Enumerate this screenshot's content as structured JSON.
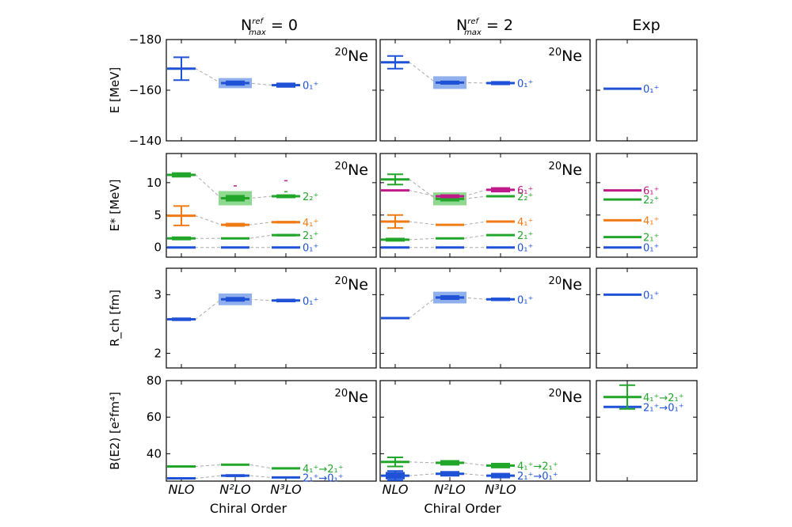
{
  "colors": {
    "blue": "#1f52d6",
    "green": "#22a62a",
    "orange": "#f07b14",
    "magenta": "#c0198a",
    "band_blue": "#8fb0ec",
    "band_green": "#8fd88f"
  },
  "columns": [
    {
      "id": "c0",
      "title_main": "N",
      "title_sup": "ref",
      "title_sub": "max",
      "title_value": " = 0"
    },
    {
      "id": "c1",
      "title_main": "N",
      "title_sup": "ref",
      "title_sub": "max",
      "title_value": " = 2"
    },
    {
      "id": "c2",
      "title": "Exp"
    }
  ],
  "nucleus": {
    "mass": "20",
    "symbol": "Ne"
  },
  "x_categories": [
    "NLO",
    "N²LO",
    "N³LO"
  ],
  "x_label": "Chiral Order",
  "chart_data": [
    {
      "type": "level-scheme",
      "row": "energy",
      "ylabel": "E [MeV]",
      "ylim": [
        -140,
        -180
      ],
      "yticks": [
        -180,
        -160,
        -140
      ],
      "inverted": true,
      "series": [
        {
          "name": "0₁⁺",
          "color": "blue",
          "calc": {
            "c0": [
              {
                "v": -168.5,
                "err": 4.5
              },
              {
                "v": -162.8,
                "band": 2.0,
                "thick": 1.0
              },
              {
                "v": -162.0,
                "thick": 1.0
              }
            ],
            "c1": [
              {
                "v": -171.0,
                "err": 2.5
              },
              {
                "v": -163.0,
                "band": 2.5,
                "thick": 0.8
              },
              {
                "v": -162.8,
                "thick": 0.8
              }
            ]
          },
          "exp": {
            "v": -160.6
          }
        }
      ]
    },
    {
      "type": "level-scheme",
      "row": "excitation",
      "ylabel": "E* [MeV]",
      "ylim": [
        -1.5,
        14.5
      ],
      "yticks": [
        0,
        5,
        10
      ],
      "series": [
        {
          "name": "0₁⁺",
          "color": "blue",
          "calc": {
            "c0": [
              {
                "v": 0
              },
              {
                "v": 0
              },
              {
                "v": 0
              }
            ],
            "c1": [
              {
                "v": 0
              },
              {
                "v": 0
              },
              {
                "v": 0
              }
            ]
          },
          "exp": {
            "v": 0
          }
        },
        {
          "name": "2₁⁺",
          "color": "green",
          "calc": {
            "c0": [
              {
                "v": 1.4,
                "thick": 0.3
              },
              {
                "v": 1.4
              },
              {
                "v": 1.9,
                "thick": 0.2
              }
            ],
            "c1": [
              {
                "v": 1.2,
                "thick": 0.3
              },
              {
                "v": 1.4
              },
              {
                "v": 1.9
              }
            ]
          },
          "exp": {
            "v": 1.6
          }
        },
        {
          "name": "4₁⁺",
          "color": "orange",
          "calc": {
            "c0": [
              {
                "v": 4.9,
                "err": 1.5
              },
              {
                "v": 3.5,
                "thick": 0.3
              },
              {
                "v": 3.9,
                "thick": 0.2
              }
            ],
            "c1": [
              {
                "v": 4.0,
                "err": 1.0
              },
              {
                "v": 3.5
              },
              {
                "v": 4.0
              }
            ]
          },
          "exp": {
            "v": 4.2
          }
        },
        {
          "name": "2₂⁺",
          "color": "green",
          "calc": {
            "c0": [
              {
                "v": 11.2,
                "thick": 0.4
              },
              {
                "v": 7.6,
                "band": 1.1,
                "thick": 0.5
              },
              {
                "v": 7.9,
                "thick": 0.3
              }
            ],
            "c1": [
              {
                "v": 10.5,
                "err": 0.8
              },
              {
                "v": 7.5,
                "band": 1.0,
                "thick": 0.4
              },
              {
                "v": 7.9
              }
            ]
          },
          "exp": {
            "v": 7.4
          }
        },
        {
          "name": "6₁⁺",
          "color": "magenta",
          "calc": {
            "c0": [],
            "c1": [
              {
                "v": 8.8
              },
              {
                "v": 7.9,
                "thick": 0.3
              },
              {
                "v": 8.9,
                "thick": 0.4
              }
            ]
          },
          "exp": {
            "v": 8.8
          }
        }
      ],
      "dots": [
        {
          "col": "c0",
          "cat": 1,
          "v": 9.5,
          "color": "magenta"
        },
        {
          "col": "c0",
          "cat": 2,
          "v": 10.3,
          "color": "magenta"
        },
        {
          "col": "c0",
          "cat": 2,
          "v": 8.6,
          "color": "green"
        }
      ]
    },
    {
      "type": "level-scheme",
      "row": "radius",
      "ylabel": "R_ch [fm]",
      "ylim": [
        1.75,
        3.45
      ],
      "yticks": [
        2,
        3
      ],
      "series": [
        {
          "name": "0₁⁺",
          "color": "blue",
          "calc": {
            "c0": [
              {
                "v": 2.58,
                "thick": 0.03
              },
              {
                "v": 2.92,
                "band": 0.1,
                "thick": 0.04
              },
              {
                "v": 2.9,
                "thick": 0.03
              }
            ],
            "c1": [
              {
                "v": 2.6
              },
              {
                "v": 2.95,
                "band": 0.1,
                "thick": 0.04
              },
              {
                "v": 2.92,
                "thick": 0.03
              }
            ]
          },
          "exp": {
            "v": 3.0
          }
        }
      ]
    },
    {
      "type": "level-scheme",
      "row": "be2",
      "ylabel": "B(E2) [e²fm⁴]",
      "ylim": [
        25,
        80
      ],
      "yticks": [
        40,
        60,
        80
      ],
      "series": [
        {
          "name": "2₁⁺→0₁⁺",
          "color": "blue",
          "calc": {
            "c0": [
              {
                "v": 26.5
              },
              {
                "v": 28.0,
                "thick": 0.8
              },
              {
                "v": 27.0
              }
            ],
            "c1": [
              {
                "v": 28.0,
                "err": 2.5,
                "thick": 2.0
              },
              {
                "v": 29.0,
                "thick": 1.5
              },
              {
                "v": 28.0,
                "thick": 1.5
              }
            ]
          },
          "exp": {
            "v": 65.6
          }
        },
        {
          "name": "4₁⁺→2₁⁺",
          "color": "green",
          "calc": {
            "c0": [
              {
                "v": 33.0
              },
              {
                "v": 34.0
              },
              {
                "v": 32.0
              }
            ],
            "c1": [
              {
                "v": 35.5,
                "err": 2.5
              },
              {
                "v": 35.0,
                "thick": 1.5
              },
              {
                "v": 33.5,
                "thick": 1.5
              }
            ]
          },
          "exp": {
            "v": 71.0,
            "err": 6.5
          }
        }
      ]
    }
  ]
}
